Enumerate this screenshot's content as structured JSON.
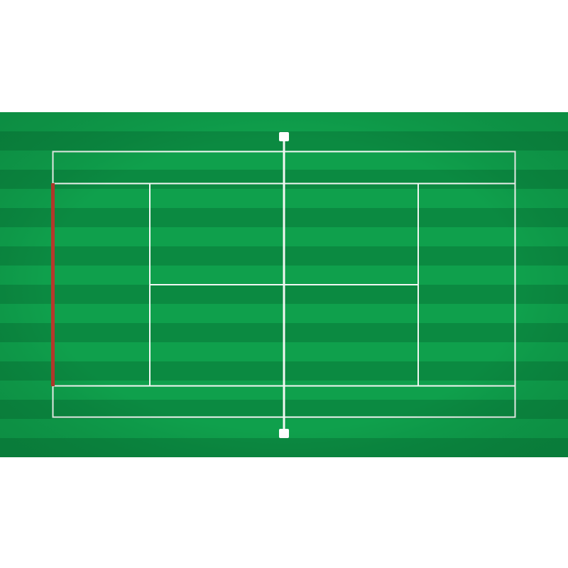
{
  "scene": {
    "subject": "tennis-court-top-view",
    "colors": {
      "background": "#ffffff",
      "grass_light": "#0fa04c",
      "grass_dark": "#0b8a41",
      "lines": "#f2f7f3",
      "highlight_line": "#b5392b",
      "net_post": "#ffffff"
    },
    "stripe_count": 18,
    "highlighted_line": "left-baseline",
    "icons": [
      "net-post-icon"
    ]
  }
}
